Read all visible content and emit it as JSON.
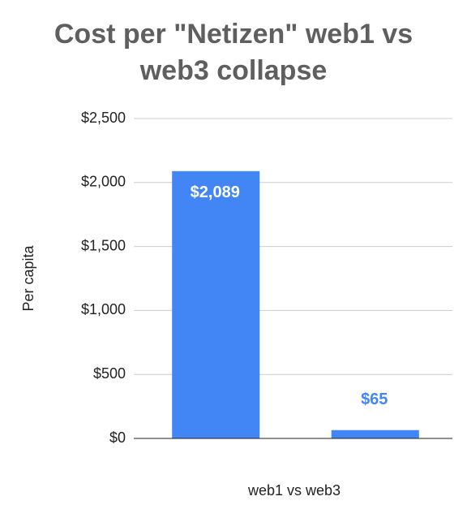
{
  "chart_data": {
    "type": "bar",
    "title": "Cost per \"Netizen\" web1 vs web3 collapse",
    "y_label": "Per capita",
    "x_label": "web1 vs web3",
    "categories": [
      null,
      null
    ],
    "values": [
      2089,
      65
    ],
    "value_labels": [
      "$2,089",
      "$65"
    ],
    "color": "#4285f4",
    "ylim": [
      0,
      2500
    ],
    "yticks": [
      {
        "value": 0,
        "label": "$0"
      },
      {
        "value": 500,
        "label": "$500"
      },
      {
        "value": 1000,
        "label": "$1,000"
      },
      {
        "value": 1500,
        "label": "$1,500"
      },
      {
        "value": 2000,
        "label": "$2,000"
      },
      {
        "value": 2500,
        "label": "$2,500"
      }
    ],
    "grid": true
  }
}
